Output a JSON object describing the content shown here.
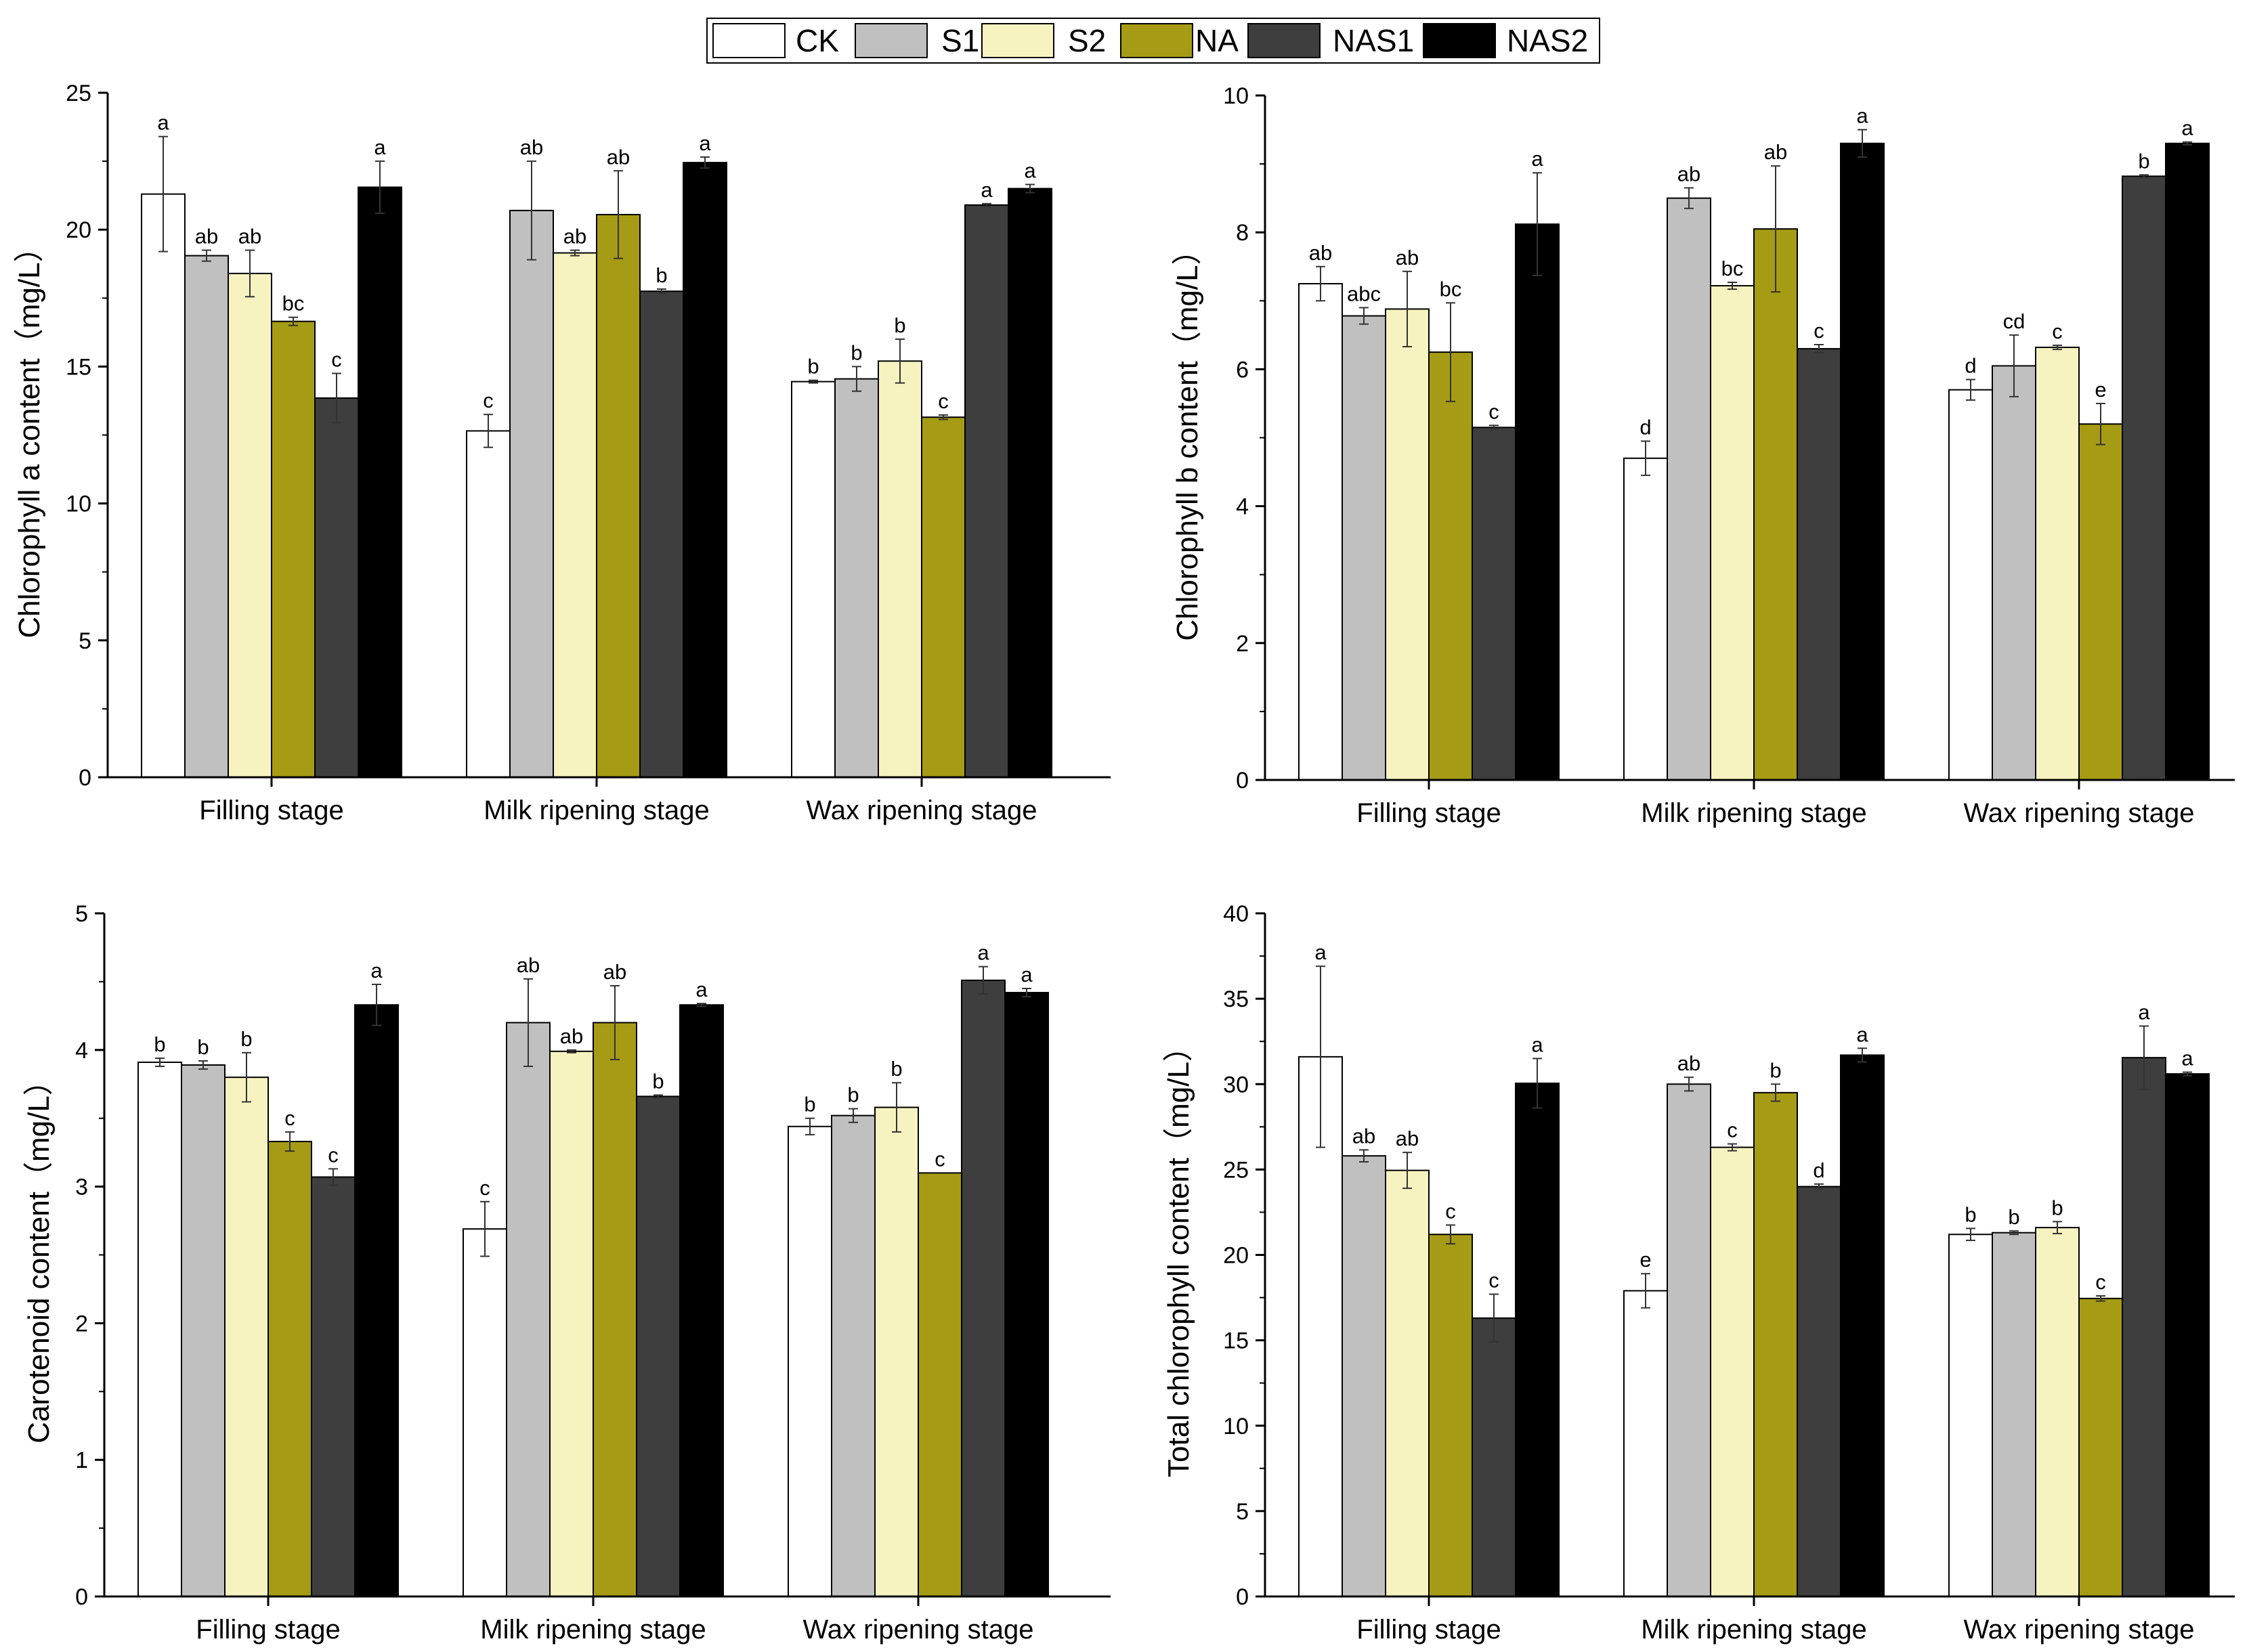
{
  "legend": [
    {
      "name": "CK",
      "color": "#ffffff"
    },
    {
      "name": "S1",
      "color": "#c0c0c0"
    },
    {
      "name": "S2",
      "color": "#f7f3c1"
    },
    {
      "name": "NA",
      "color": "#a69b14"
    },
    {
      "name": "NAS1",
      "color": "#3e3e3e"
    },
    {
      "name": "NAS2",
      "color": "#000000"
    }
  ],
  "chart_data": [
    {
      "type": "bar",
      "title": "",
      "ylabel": "Chlorophyll a content（mg/L）",
      "xlabel": "",
      "categories": [
        "Filling stage",
        "Milk ripening stage",
        "Wax ripening stage"
      ],
      "ylim": [
        0,
        25
      ],
      "yticks": [
        0,
        5,
        10,
        15,
        20,
        25
      ],
      "series": [
        {
          "name": "CK",
          "values": [
            21.3,
            12.65,
            14.45
          ],
          "errors": [
            2.1,
            0.6,
            0.05
          ],
          "labels": [
            "a",
            "c",
            "b"
          ]
        },
        {
          "name": "S1",
          "values": [
            19.05,
            20.7,
            14.55
          ],
          "errors": [
            0.2,
            1.8,
            0.45
          ],
          "labels": [
            "ab",
            "ab",
            "b"
          ]
        },
        {
          "name": "S2",
          "values": [
            18.4,
            19.15,
            15.2
          ],
          "errors": [
            0.85,
            0.1,
            0.8
          ],
          "labels": [
            "ab",
            "ab",
            "b"
          ]
        },
        {
          "name": "NA",
          "values": [
            16.65,
            20.55,
            13.15
          ],
          "errors": [
            0.15,
            1.6,
            0.08
          ],
          "labels": [
            "bc",
            "ab",
            "c"
          ]
        },
        {
          "name": "NAS1",
          "values": [
            13.85,
            17.75,
            20.9
          ],
          "errors": [
            0.9,
            0.08,
            0.05
          ],
          "labels": [
            "c",
            "b",
            "a"
          ]
        },
        {
          "name": "NAS2",
          "values": [
            21.55,
            22.45,
            21.5
          ],
          "errors": [
            0.95,
            0.2,
            0.15
          ],
          "labels": [
            "a",
            "a",
            "a"
          ]
        }
      ]
    },
    {
      "type": "bar",
      "title": "",
      "ylabel": "Chlorophyll b content（mg/L）",
      "xlabel": "",
      "categories": [
        "Filling stage",
        "Milk ripening stage",
        "Wax ripening stage"
      ],
      "ylim": [
        0,
        10
      ],
      "yticks": [
        0,
        2,
        4,
        6,
        8,
        10
      ],
      "series": [
        {
          "name": "CK",
          "values": [
            7.25,
            4.7,
            5.7
          ],
          "errors": [
            0.25,
            0.25,
            0.15
          ],
          "labels": [
            "ab",
            "d",
            "d"
          ]
        },
        {
          "name": "S1",
          "values": [
            6.78,
            8.5,
            6.05
          ],
          "errors": [
            0.12,
            0.15,
            0.45
          ],
          "labels": [
            "abc",
            "ab",
            "cd"
          ]
        },
        {
          "name": "S2",
          "values": [
            6.88,
            7.22,
            6.32
          ],
          "errors": [
            0.55,
            0.05,
            0.03
          ],
          "labels": [
            "ab",
            "bc",
            "c"
          ]
        },
        {
          "name": "NA",
          "values": [
            6.25,
            8.05,
            5.2
          ],
          "errors": [
            0.72,
            0.92,
            0.3
          ],
          "labels": [
            "bc",
            "ab",
            "e"
          ]
        },
        {
          "name": "NAS1",
          "values": [
            5.15,
            6.3,
            8.82
          ],
          "errors": [
            0.03,
            0.06,
            0.02
          ],
          "labels": [
            "c",
            "c",
            "b"
          ]
        },
        {
          "name": "NAS2",
          "values": [
            8.12,
            9.3,
            9.3
          ],
          "errors": [
            0.75,
            0.2,
            0.02
          ],
          "labels": [
            "a",
            "a",
            "a"
          ]
        }
      ]
    },
    {
      "type": "bar",
      "title": "",
      "ylabel": "Carotenoid content（mg/L）",
      "xlabel": "",
      "categories": [
        "Filling stage",
        "Milk ripening stage",
        "Wax ripening stage"
      ],
      "ylim": [
        0,
        5
      ],
      "yticks": [
        0,
        1,
        2,
        3,
        4,
        5
      ],
      "series": [
        {
          "name": "CK",
          "values": [
            3.91,
            2.69,
            3.44
          ],
          "errors": [
            0.03,
            0.2,
            0.06
          ],
          "labels": [
            "b",
            "c",
            "b"
          ]
        },
        {
          "name": "S1",
          "values": [
            3.89,
            4.2,
            3.52
          ],
          "errors": [
            0.03,
            0.32,
            0.05
          ],
          "labels": [
            "b",
            "ab",
            "b"
          ]
        },
        {
          "name": "S2",
          "values": [
            3.8,
            3.99,
            3.58
          ],
          "errors": [
            0.18,
            0.01,
            0.18
          ],
          "labels": [
            "b",
            "ab",
            "b"
          ]
        },
        {
          "name": "NA",
          "values": [
            3.33,
            4.2,
            3.1
          ],
          "errors": [
            0.07,
            0.27,
            0.0
          ],
          "labels": [
            "c",
            "ab",
            "c"
          ]
        },
        {
          "name": "NAS1",
          "values": [
            3.07,
            3.66,
            4.51
          ],
          "errors": [
            0.06,
            0.01,
            0.1
          ],
          "labels": [
            "c",
            "b",
            "a"
          ]
        },
        {
          "name": "NAS2",
          "values": [
            4.33,
            4.33,
            4.42
          ],
          "errors": [
            0.15,
            0.01,
            0.03
          ],
          "labels": [
            "a",
            "a",
            "a"
          ]
        }
      ]
    },
    {
      "type": "bar",
      "title": "",
      "ylabel": "Total chlorophyll content（mg/L）",
      "xlabel": "",
      "categories": [
        "Filling stage",
        "Milk ripening stage",
        "Wax ripening stage"
      ],
      "ylim": [
        0,
        40
      ],
      "yticks": [
        0,
        5,
        10,
        15,
        20,
        25,
        30,
        35,
        40
      ],
      "series": [
        {
          "name": "CK",
          "values": [
            31.6,
            17.9,
            21.2
          ],
          "errors": [
            5.3,
            1.0,
            0.35
          ],
          "labels": [
            "a",
            "e",
            "b"
          ]
        },
        {
          "name": "S1",
          "values": [
            25.8,
            30.0,
            21.3
          ],
          "errors": [
            0.35,
            0.4,
            0.1
          ],
          "labels": [
            "ab",
            "ab",
            "b"
          ]
        },
        {
          "name": "S2",
          "values": [
            24.95,
            26.3,
            21.6
          ],
          "errors": [
            1.05,
            0.2,
            0.35
          ],
          "labels": [
            "ab",
            "c",
            "b"
          ]
        },
        {
          "name": "NA",
          "values": [
            21.2,
            29.5,
            17.45
          ],
          "errors": [
            0.55,
            0.5,
            0.15
          ],
          "labels": [
            "c",
            "b",
            "c"
          ]
        },
        {
          "name": "NAS1",
          "values": [
            16.3,
            24.0,
            31.55
          ],
          "errors": [
            1.4,
            0.15,
            1.85
          ],
          "labels": [
            "c",
            "d",
            "a"
          ]
        },
        {
          "name": "NAS2",
          "values": [
            30.05,
            31.7,
            30.6
          ],
          "errors": [
            1.45,
            0.4,
            0.1
          ],
          "labels": [
            "a",
            "a",
            "a"
          ]
        }
      ]
    }
  ]
}
